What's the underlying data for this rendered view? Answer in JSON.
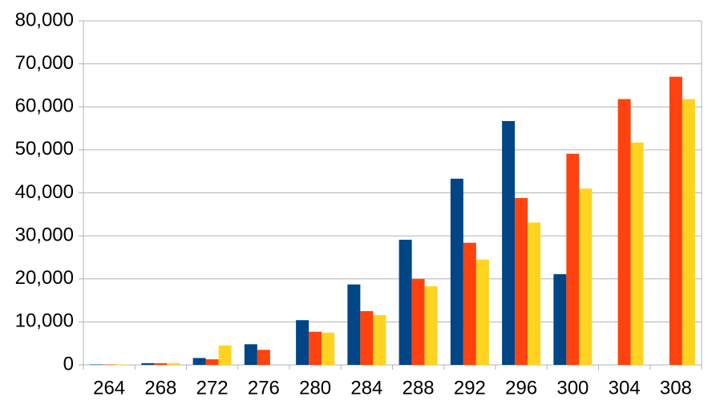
{
  "chart_data": {
    "type": "bar",
    "categories": [
      "264",
      "268",
      "272",
      "276",
      "280",
      "284",
      "288",
      "292",
      "296",
      "300",
      "304",
      "308"
    ],
    "series": [
      {
        "color": "#004586",
        "values": [
          100,
          400,
          1600,
          4800,
          10400,
          18700,
          29100,
          43300,
          56700,
          21100,
          0,
          0
        ]
      },
      {
        "color": "#ff420e",
        "values": [
          100,
          400,
          1300,
          3500,
          7700,
          12500,
          20000,
          28400,
          38800,
          49100,
          61800,
          67000
        ]
      },
      {
        "color": "#ffd320",
        "values": [
          100,
          400,
          4500,
          0,
          7500,
          11600,
          18300,
          24500,
          33100,
          41000,
          51700,
          61800
        ]
      }
    ],
    "ylim": [
      0,
      80000
    ],
    "yticks": [
      0,
      {
        "value": 10000,
        "label": "10,000"
      },
      {
        "value": 20000,
        "label": "20,000"
      },
      {
        "value": 30000,
        "label": "30,000"
      },
      {
        "value": 40000,
        "label": "40,000"
      },
      {
        "value": 50000,
        "label": "50,000"
      },
      {
        "value": 60000,
        "label": "60,000"
      },
      {
        "value": 70000,
        "label": "70,000"
      },
      {
        "value": 80000,
        "label": "80,000"
      }
    ],
    "grid": true
  }
}
